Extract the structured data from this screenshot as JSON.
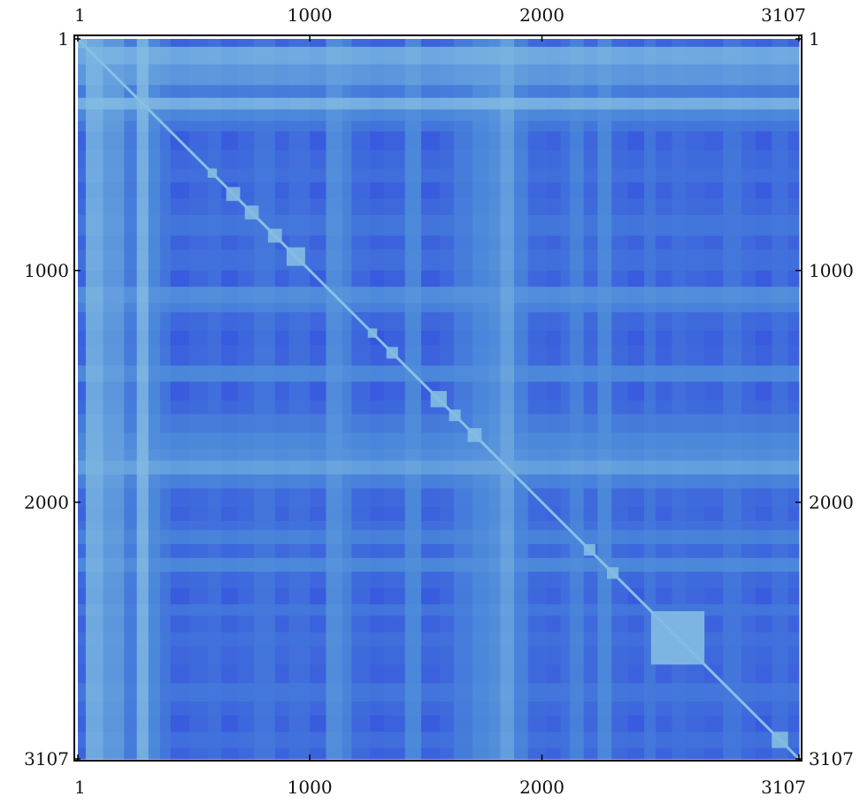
{
  "chart_data": {
    "type": "heatmap",
    "title": "",
    "xlabel": "",
    "ylabel": "",
    "n": 3107,
    "xlim": [
      1,
      3107
    ],
    "ylim": [
      1,
      3107
    ],
    "x_ticks": [
      1,
      1000,
      2000,
      3107
    ],
    "x_tick_labels": [
      "1",
      "1000",
      "2000",
      "3107"
    ],
    "y_ticks": [
      1,
      1000,
      2000,
      3107
    ],
    "y_tick_labels": [
      "1",
      "1000",
      "2000",
      "3107"
    ],
    "color_scale": {
      "low": "#2d3fe0",
      "mid": "#4a86da",
      "high": "#8fc7e4"
    },
    "block_boundaries": [
      1,
      35,
      110,
      200,
      255,
      305,
      355,
      400,
      480,
      560,
      620,
      690,
      760,
      850,
      910,
      1000,
      1070,
      1140,
      1180,
      1260,
      1320,
      1410,
      1480,
      1560,
      1620,
      1700,
      1770,
      1820,
      1880,
      1940,
      2020,
      2080,
      2120,
      2180,
      2240,
      2300,
      2370,
      2440,
      2490,
      2560,
      2620,
      2700,
      2780,
      2860,
      2920,
      2990,
      3060,
      3107
    ],
    "block_intensity": [
      0.25,
      0.85,
      0.7,
      0.45,
      0.9,
      0.55,
      0.4,
      0.2,
      0.3,
      0.35,
      0.2,
      0.3,
      0.4,
      0.25,
      0.35,
      0.2,
      0.6,
      0.5,
      0.3,
      0.15,
      0.25,
      0.55,
      0.2,
      0.3,
      0.45,
      0.55,
      0.6,
      0.75,
      0.5,
      0.3,
      0.25,
      0.35,
      0.5,
      0.3,
      0.55,
      0.3,
      0.2,
      0.4,
      0.25,
      0.35,
      0.3,
      0.25,
      0.4,
      0.3,
      0.2,
      0.35,
      0.25
    ],
    "diagonal_blocks": [
      {
        "start": 1,
        "end": 40
      },
      {
        "start": 560,
        "end": 600
      },
      {
        "start": 640,
        "end": 700
      },
      {
        "start": 720,
        "end": 780
      },
      {
        "start": 820,
        "end": 880
      },
      {
        "start": 900,
        "end": 980
      },
      {
        "start": 1250,
        "end": 1290
      },
      {
        "start": 1330,
        "end": 1380
      },
      {
        "start": 1520,
        "end": 1590
      },
      {
        "start": 1600,
        "end": 1650
      },
      {
        "start": 1680,
        "end": 1740
      },
      {
        "start": 2180,
        "end": 2230
      },
      {
        "start": 2280,
        "end": 2330
      },
      {
        "start": 2470,
        "end": 2700
      },
      {
        "start": 2990,
        "end": 3060
      }
    ]
  }
}
